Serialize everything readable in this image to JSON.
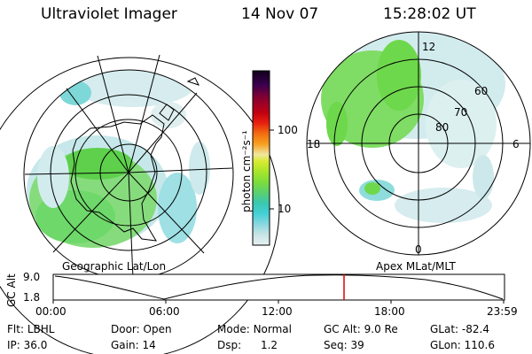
{
  "header": {
    "instrument": "Ultraviolet Imager",
    "date": "14 Nov 07",
    "time": "15:28:02 UT"
  },
  "colorbar": {
    "label": "photon cm⁻²s⁻¹",
    "ticks": [
      "100",
      "10"
    ],
    "colors": [
      "#e7f1f1",
      "#c8e4e6",
      "#8ad7df",
      "#44d0d6",
      "#38c8b0",
      "#5ad070",
      "#7cdc3c",
      "#a6e62c",
      "#d8ea30",
      "#f0e6a0",
      "#f6a020",
      "#f26c10",
      "#e82010",
      "#c00010",
      "#8a0030",
      "#3a0050",
      "#10001a"
    ]
  },
  "left_map": {
    "caption": "Geographic Lat/Lon"
  },
  "right_map": {
    "caption": "Apex MLat/MLT",
    "mlt_labels": [
      "12",
      "18",
      "6",
      "0"
    ],
    "lat_labels": [
      "60",
      "70",
      "80"
    ]
  },
  "altitude_plot": {
    "ylabel": "GC Alt",
    "yticks": [
      "9.0",
      "1.8"
    ],
    "xticks": [
      "00:00",
      "06:00",
      "12:00",
      "18:00",
      "23:59"
    ],
    "marker_color": "#e00000"
  },
  "info": {
    "row1": [
      {
        "label": "Flt:",
        "value": "LBHL"
      },
      {
        "label": "Door:",
        "value": "Open"
      },
      {
        "label": "Mode:",
        "value": "Normal"
      },
      {
        "label": "GC Alt:",
        "value": "9.0 Re"
      },
      {
        "label": "GLat:",
        "value": "-82.4"
      }
    ],
    "row2": [
      {
        "label": "IP:",
        "value": "36.0"
      },
      {
        "label": "Gain:",
        "value": "14"
      },
      {
        "label": "Dsp:",
        "value": "1.2"
      },
      {
        "label": "Seq:",
        "value": "39"
      },
      {
        "label": "GLon:",
        "value": "110.6"
      }
    ]
  }
}
